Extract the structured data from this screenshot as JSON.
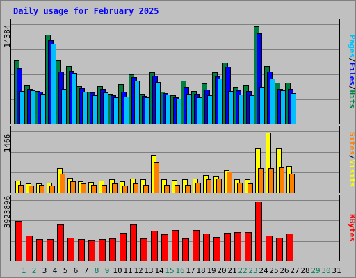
{
  "chart_data": [
    {
      "type": "bar",
      "panel": "hits-files-pages",
      "title": "Daily usage for February 2025",
      "max_label": "14384",
      "ylim": [
        0,
        14384
      ],
      "legend": [
        {
          "label": "Pages",
          "color": "#00c0ff"
        },
        {
          "label": "/",
          "color": "#000000"
        },
        {
          "label": "Files",
          "color": "#0000ff"
        },
        {
          "label": "/",
          "color": "#000000"
        },
        {
          "label": "Hits",
          "color": "#008040"
        }
      ],
      "series": [
        {
          "name": "Hits",
          "color": "#008040",
          "values": [
            9300,
            5700,
            4900,
            13100,
            9300,
            8500,
            5600,
            4800,
            5600,
            4500,
            5900,
            7300,
            4500,
            7600,
            4800,
            4300,
            6400,
            4900,
            6000,
            7600,
            9000,
            5500,
            5700,
            14300,
            8500,
            6100,
            6100,
            0,
            0,
            0,
            0
          ]
        },
        {
          "name": "Files",
          "color": "#0000ff",
          "values": [
            8200,
            5200,
            4800,
            12300,
            7700,
            7800,
            5300,
            4700,
            5200,
            4300,
            4800,
            6900,
            4200,
            7100,
            4600,
            4000,
            5500,
            4500,
            5100,
            7000,
            8400,
            5000,
            4900,
            13300,
            7700,
            5200,
            5200,
            0,
            0,
            0,
            0
          ]
        },
        {
          "name": "Pages",
          "color": "#00c0ff",
          "values": [
            4900,
            5000,
            4500,
            11800,
            5200,
            7500,
            4800,
            4300,
            4700,
            4000,
            4100,
            6400,
            3900,
            6200,
            4400,
            3700,
            4500,
            4000,
            4300,
            6700,
            4900,
            4400,
            4300,
            5500,
            6700,
            5000,
            4600,
            0,
            0,
            0,
            0
          ]
        }
      ]
    },
    {
      "type": "bar",
      "panel": "visits-sites",
      "max_label": "1466",
      "ylim": [
        0,
        1466
      ],
      "legend": [
        {
          "label": "Sites",
          "color": "#ff8000"
        },
        {
          "label": "/",
          "color": "#000000"
        },
        {
          "label": "Visits",
          "color": "#ffff00"
        }
      ],
      "series": [
        {
          "name": "Visits",
          "color": "#ffff00",
          "values": [
            310,
            230,
            240,
            250,
            600,
            370,
            290,
            270,
            310,
            330,
            290,
            360,
            330,
            920,
            330,
            320,
            340,
            360,
            440,
            420,
            560,
            340,
            340,
            1090,
            1466,
            1090,
            650,
            0,
            0,
            0,
            0
          ]
        },
        {
          "name": "Sites",
          "color": "#ff8000",
          "values": [
            210,
            180,
            200,
            190,
            470,
            280,
            230,
            200,
            210,
            240,
            180,
            230,
            200,
            760,
            210,
            200,
            210,
            260,
            330,
            350,
            520,
            260,
            240,
            610,
            610,
            620,
            480,
            0,
            0,
            0,
            0
          ]
        }
      ]
    },
    {
      "type": "bar",
      "panel": "kbytes",
      "max_label": "3923896",
      "ylim": [
        0,
        3923896
      ],
      "legend": [
        {
          "label": "KBytes",
          "color": "#ff0000"
        }
      ],
      "series": [
        {
          "name": "KBytes",
          "color": "#ff0000",
          "values": [
            2630000,
            1710000,
            1440000,
            1470000,
            2430000,
            1560000,
            1440000,
            1390000,
            1480000,
            1490000,
            1880000,
            2410000,
            1500000,
            1990000,
            1780000,
            2040000,
            1500000,
            2070000,
            1820000,
            1590000,
            1870000,
            1910000,
            1910000,
            3923896,
            1700000,
            1570000,
            1830000,
            0,
            0,
            0,
            0
          ]
        }
      ]
    }
  ],
  "x_axis": {
    "categories": [
      "1",
      "2",
      "3",
      "4",
      "5",
      "6",
      "7",
      "8",
      "9",
      "10",
      "11",
      "12",
      "13",
      "14",
      "15",
      "16",
      "17",
      "18",
      "19",
      "20",
      "21",
      "22",
      "23",
      "24",
      "25",
      "26",
      "27",
      "28",
      "29",
      "30",
      "31"
    ],
    "weekend_color": "#00805c",
    "weekday_color": "#000000",
    "weekend_days": [
      1,
      2,
      8,
      9,
      15,
      16,
      22,
      23,
      29,
      30
    ]
  }
}
